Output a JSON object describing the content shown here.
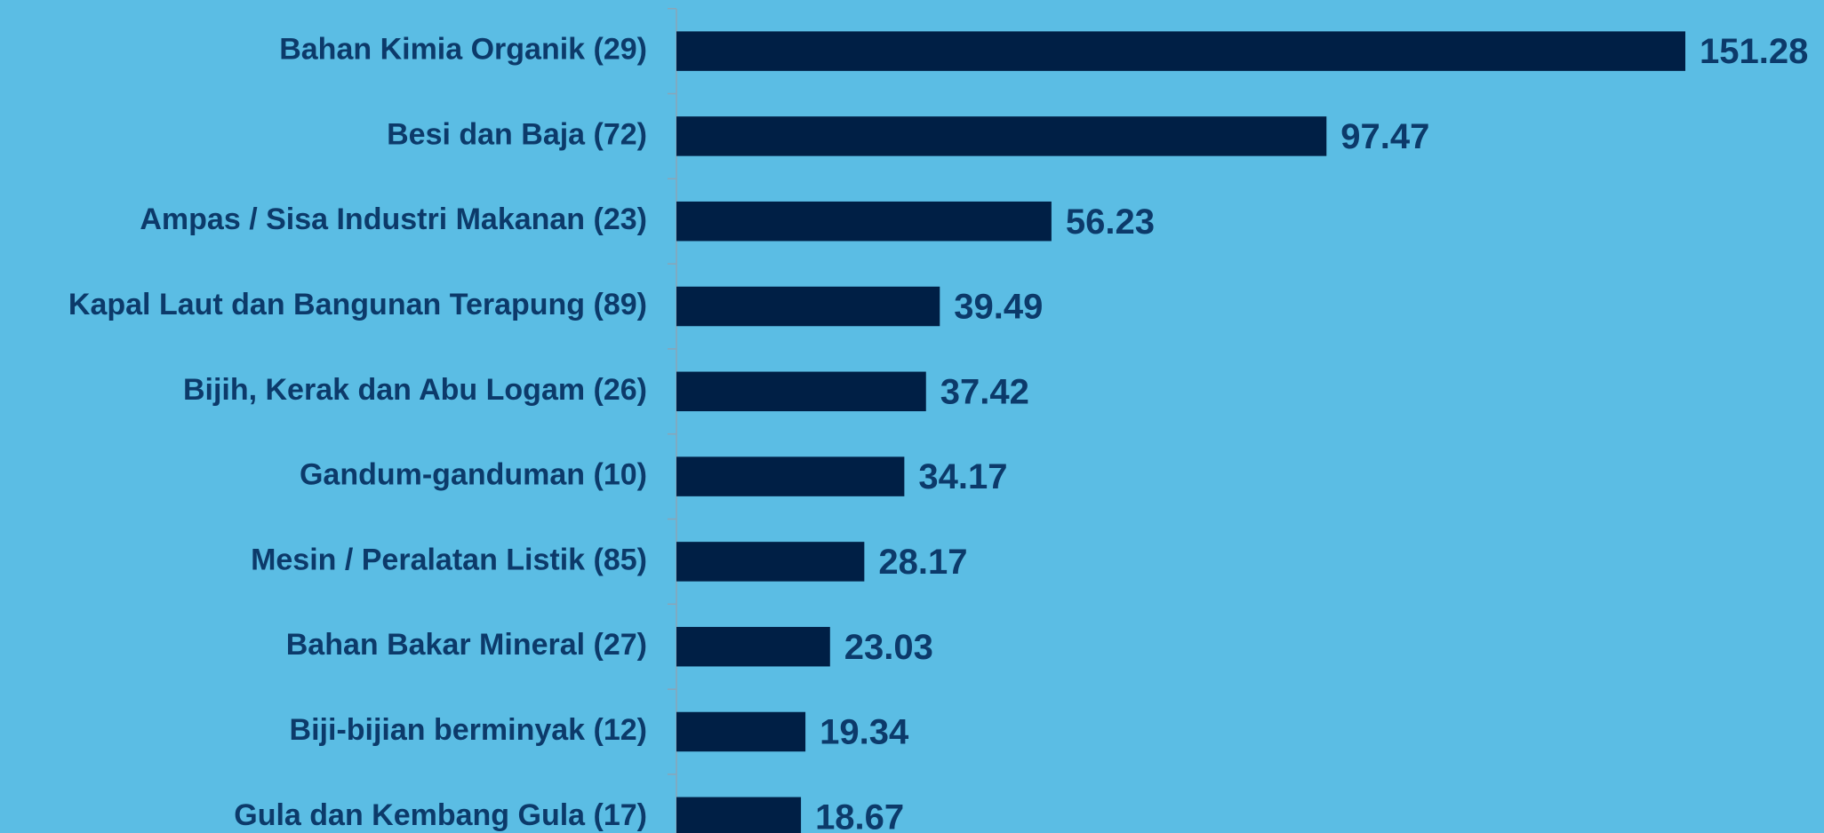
{
  "chart_data": {
    "type": "barh",
    "categories": [
      "Bahan Kimia Organik (29)",
      "Besi dan Baja (72)",
      "Ampas / Sisa Industri Makanan (23)",
      "Kapal Laut dan Bangunan Terapung (89)",
      "Bijih, Kerak dan Abu Logam (26)",
      "Gandum-ganduman (10)",
      "Mesin / Peralatan Listik (85)",
      "Bahan Bakar Mineral (27)",
      "Biji-bijian berminyak (12)",
      "Gula dan Kembang Gula (17)"
    ],
    "values": [
      151.28,
      97.47,
      56.23,
      39.49,
      37.42,
      34.17,
      28.17,
      23.03,
      19.34,
      18.67
    ],
    "color": "#001f45"
  }
}
